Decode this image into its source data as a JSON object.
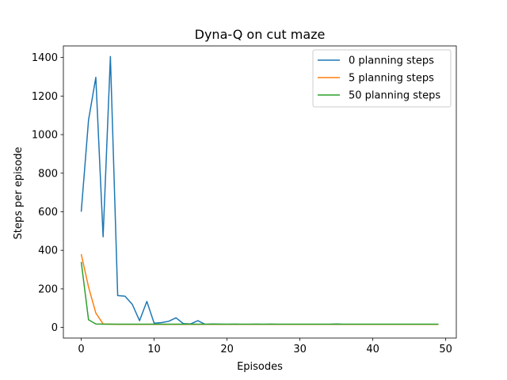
{
  "chart_data": {
    "type": "line",
    "title": "Dyna-Q on cut maze",
    "xlabel": "Episodes",
    "ylabel": "Steps per episode",
    "xlim": [
      -2.45,
      51.45
    ],
    "ylim": [
      -55,
      1460
    ],
    "xticks": [
      0,
      10,
      20,
      30,
      40,
      50
    ],
    "yticks": [
      0,
      200,
      400,
      600,
      800,
      1000,
      1200,
      1400
    ],
    "legend_position": "top-right",
    "grid": false,
    "x": [
      0,
      1,
      2,
      3,
      4,
      5,
      6,
      7,
      8,
      9,
      10,
      11,
      12,
      13,
      14,
      15,
      16,
      17,
      18,
      19,
      20,
      21,
      22,
      23,
      24,
      25,
      26,
      27,
      28,
      29,
      30,
      31,
      32,
      33,
      34,
      35,
      36,
      37,
      38,
      39,
      40,
      41,
      42,
      43,
      44,
      45,
      46,
      47,
      48,
      49
    ],
    "series": [
      {
        "name": "0 planning steps",
        "color": "#1f77b4",
        "values": [
          600,
          1075,
          1297,
          470,
          1405,
          165,
          162,
          120,
          35,
          135,
          22,
          25,
          32,
          50,
          20,
          18,
          35,
          16,
          18,
          17,
          16,
          17,
          16,
          16,
          17,
          16,
          17,
          16,
          16,
          16,
          16,
          16,
          16,
          16,
          16,
          18,
          16,
          16,
          16,
          16,
          16,
          16,
          16,
          16,
          16,
          16,
          16,
          16,
          16,
          16
        ]
      },
      {
        "name": "5 planning steps",
        "color": "#ff7f0e",
        "values": [
          380,
          210,
          75,
          18,
          17,
          16,
          16,
          16,
          16,
          16,
          16,
          16,
          16,
          16,
          16,
          16,
          16,
          16,
          16,
          16,
          16,
          16,
          16,
          16,
          16,
          16,
          16,
          16,
          16,
          16,
          16,
          16,
          16,
          16,
          16,
          16,
          16,
          16,
          16,
          16,
          16,
          16,
          16,
          16,
          16,
          16,
          16,
          16,
          16,
          16
        ]
      },
      {
        "name": "50 planning steps",
        "color": "#2ca02c",
        "values": [
          340,
          40,
          18,
          17,
          17,
          17,
          17,
          17,
          17,
          17,
          17,
          17,
          17,
          17,
          17,
          17,
          17,
          17,
          17,
          17,
          17,
          17,
          17,
          17,
          17,
          17,
          17,
          17,
          17,
          17,
          17,
          17,
          17,
          17,
          17,
          17,
          17,
          17,
          17,
          17,
          17,
          17,
          17,
          17,
          17,
          17,
          17,
          17,
          17,
          17
        ]
      }
    ]
  }
}
